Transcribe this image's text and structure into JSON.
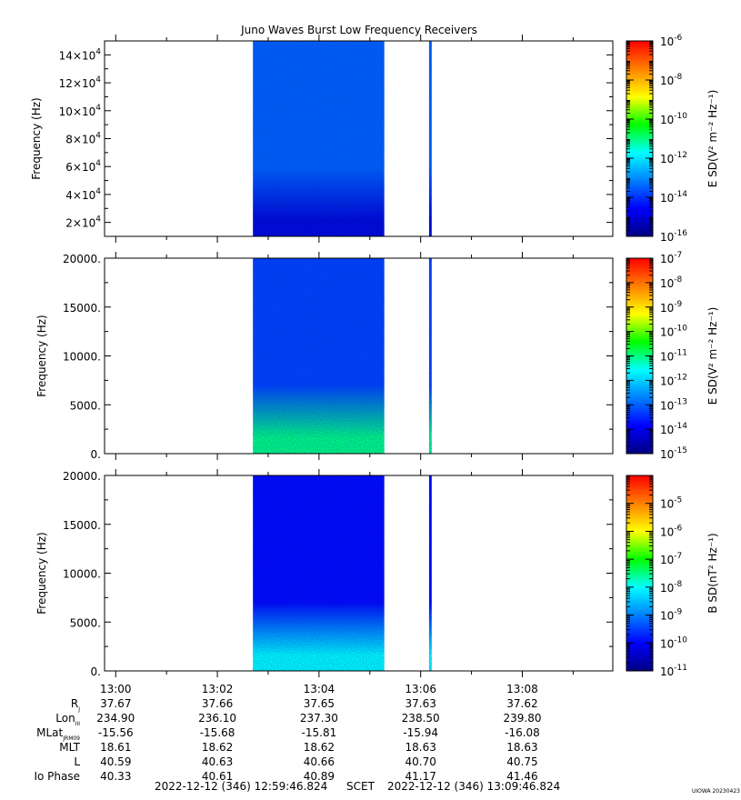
{
  "title": "Juno Waves Burst Low Frequency Receivers",
  "watermark": "UIOWA 20230423",
  "time_range": {
    "start": "2022-12-12 (346) 12:59:46.824",
    "mid": "SCET",
    "end": "2022-12-12 (346) 13:09:46.824"
  },
  "colormap": [
    "#000080",
    "#0000ff",
    "#0080ff",
    "#00ffff",
    "#00ff00",
    "#ffff00",
    "#ff8000",
    "#ff0000"
  ],
  "ephemeris": {
    "labels": [
      "R",
      "Lon",
      "MLat",
      "MLT",
      "L",
      "Io Phase"
    ],
    "label_subs": [
      "J",
      "III",
      "JRM09",
      "",
      "",
      ""
    ],
    "rows": [
      [
        "37.67",
        "37.66",
        "37.65",
        "37.63",
        "37.62"
      ],
      [
        "234.90",
        "236.10",
        "237.30",
        "238.50",
        "239.80"
      ],
      [
        "-15.56",
        "-15.68",
        "-15.81",
        "-15.94",
        "-16.08"
      ],
      [
        "18.61",
        "18.62",
        "18.62",
        "18.63",
        "18.63"
      ],
      [
        "40.59",
        "40.63",
        "40.66",
        "40.70",
        "40.75"
      ],
      [
        "40.33",
        "40.61",
        "40.89",
        "41.17",
        "41.46"
      ]
    ]
  },
  "chart_data": [
    {
      "type": "heatmap",
      "title": "Juno Waves Burst Low Frequency Receivers",
      "xlabel": "",
      "ylabel": "Frequency (Hz)",
      "x_range": [
        "12:59:46.824",
        "13:09:46.824"
      ],
      "x_ticks": [
        "13:00",
        "13:02",
        "13:04",
        "13:06",
        "13:08"
      ],
      "ylim": [
        10000,
        150000
      ],
      "y_ticks": [
        {
          "value": 20000,
          "mant": "2×10",
          "exp": "4"
        },
        {
          "value": 40000,
          "mant": "4×10",
          "exp": "4"
        },
        {
          "value": 60000,
          "mant": "6×10",
          "exp": "4"
        },
        {
          "value": 80000,
          "mant": "8×10",
          "exp": "4"
        },
        {
          "value": 100000,
          "mant": "10×10",
          "exp": "4"
        },
        {
          "value": 120000,
          "mant": "12×10",
          "exp": "4"
        },
        {
          "value": 140000,
          "mant": "14×10",
          "exp": "4"
        }
      ],
      "colorbar": {
        "label": "E SD(V² m⁻² Hz⁻¹)",
        "scale": "log",
        "range": [
          1e-16,
          1e-06
        ],
        "ticks": [
          {
            "value": 1e-06,
            "mant": "10",
            "exp": "-6"
          },
          {
            "value": 1e-08,
            "mant": "10",
            "exp": "-8"
          },
          {
            "value": 1e-10,
            "mant": "10",
            "exp": "-10"
          },
          {
            "value": 1e-12,
            "mant": "10",
            "exp": "-12"
          },
          {
            "value": 1e-14,
            "mant": "10",
            "exp": "-14"
          },
          {
            "value": 1e-16,
            "mant": "10",
            "exp": "-16"
          }
        ]
      },
      "data_intervals": [
        {
          "start": "13:02:42",
          "end": "13:05:17",
          "level_low_freq": 1e-15,
          "level_high_freq": 3e-14
        },
        {
          "start": "13:06:10",
          "end": "13:06:13",
          "level_low_freq": 1e-15,
          "level_high_freq": 3e-14
        }
      ]
    },
    {
      "type": "heatmap",
      "title": "",
      "xlabel": "",
      "ylabel": "Frequency (Hz)",
      "x_range": [
        "12:59:46.824",
        "13:09:46.824"
      ],
      "x_ticks": [
        "13:00",
        "13:02",
        "13:04",
        "13:06",
        "13:08"
      ],
      "ylim": [
        0,
        20000
      ],
      "y_ticks": [
        {
          "value": 0,
          "label": "0."
        },
        {
          "value": 5000,
          "label": "5000."
        },
        {
          "value": 10000,
          "label": "10000."
        },
        {
          "value": 15000,
          "label": "15000."
        },
        {
          "value": 20000,
          "label": "20000."
        }
      ],
      "colorbar": {
        "label": "E SD(V² m⁻² Hz⁻¹)",
        "scale": "log",
        "range": [
          1e-15,
          1e-07
        ],
        "ticks": [
          {
            "value": 1e-07,
            "mant": "10",
            "exp": "-7"
          },
          {
            "value": 1e-08,
            "mant": "10",
            "exp": "-8"
          },
          {
            "value": 1e-09,
            "mant": "10",
            "exp": "-9"
          },
          {
            "value": 1e-10,
            "mant": "10",
            "exp": "-10"
          },
          {
            "value": 1e-11,
            "mant": "10",
            "exp": "-11"
          },
          {
            "value": 1e-12,
            "mant": "10",
            "exp": "-12"
          },
          {
            "value": 1e-13,
            "mant": "10",
            "exp": "-13"
          },
          {
            "value": 1e-14,
            "mant": "10",
            "exp": "-14"
          },
          {
            "value": 1e-15,
            "mant": "10",
            "exp": "-15"
          }
        ]
      },
      "data_intervals": [
        {
          "start": "13:02:42",
          "end": "13:05:17",
          "level_low_freq": 1e-11,
          "level_high_freq": 5e-14
        },
        {
          "start": "13:06:10",
          "end": "13:06:13",
          "level_low_freq": 1e-11,
          "level_high_freq": 5e-14
        }
      ]
    },
    {
      "type": "heatmap",
      "title": "",
      "xlabel": "",
      "ylabel": "Frequency (Hz)",
      "x_range": [
        "12:59:46.824",
        "13:09:46.824"
      ],
      "x_ticks": [
        "13:00",
        "13:02",
        "13:04",
        "13:06",
        "13:08"
      ],
      "ylim": [
        0,
        20000
      ],
      "y_ticks": [
        {
          "value": 0,
          "label": "0."
        },
        {
          "value": 5000,
          "label": "5000."
        },
        {
          "value": 10000,
          "label": "10000."
        },
        {
          "value": 15000,
          "label": "15000."
        },
        {
          "value": 20000,
          "label": "20000."
        }
      ],
      "colorbar": {
        "label": "B SD(nT² Hz⁻¹)",
        "scale": "log",
        "range": [
          1e-11,
          0.0001
        ],
        "ticks": [
          {
            "value": 1e-05,
            "mant": "10",
            "exp": "-5"
          },
          {
            "value": 1e-06,
            "mant": "10",
            "exp": "-6"
          },
          {
            "value": 1e-07,
            "mant": "10",
            "exp": "-7"
          },
          {
            "value": 1e-08,
            "mant": "10",
            "exp": "-8"
          },
          {
            "value": 1e-09,
            "mant": "10",
            "exp": "-9"
          },
          {
            "value": 1e-10,
            "mant": "10",
            "exp": "-10"
          },
          {
            "value": 1e-11,
            "mant": "10",
            "exp": "-11"
          }
        ]
      },
      "data_intervals": [
        {
          "start": "13:02:42",
          "end": "13:05:17",
          "level_low_freq": 1e-08,
          "level_high_freq": 1e-10
        },
        {
          "start": "13:06:10",
          "end": "13:06:13",
          "level_low_freq": 1e-08,
          "level_high_freq": 1e-10
        }
      ]
    }
  ]
}
